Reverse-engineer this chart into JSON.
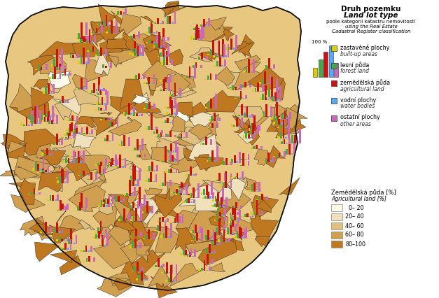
{
  "title_line1": "Druh pozemku",
  "title_line2": "Land lot type",
  "subtitle_line1": "podle kategorií katastru nemovitostí",
  "subtitle_line2": "using the Real Estate",
  "subtitle_line3": "Cadastral Register classification",
  "bar_legend_items": [
    {
      "label_cz": "zastavěné plochy",
      "label_en": "built-up areas",
      "color": "#DDCC00"
    },
    {
      "label_cz": "lesní půda",
      "label_en": "forest land",
      "color": "#44AA44"
    },
    {
      "label_cz": "zemědělská půda",
      "label_en": "agricultural land",
      "color": "#CC1111"
    },
    {
      "label_cz": "vodní plochy",
      "label_en": "water bodies",
      "color": "#55AAFF"
    },
    {
      "label_cz": "ostatní plochy",
      "label_en": "other areas",
      "color": "#CC66BB"
    }
  ],
  "choropleth_title_cz": "Zemědělská půda [%]",
  "choropleth_title_en": "Agricultural land [%]",
  "choropleth_classes": [
    {
      "label": "  0– 20",
      "color": "#FDFAE8"
    },
    {
      "label": "20– 40",
      "color": "#F0E0BC"
    },
    {
      "label": "40– 60",
      "color": "#E0C080"
    },
    {
      "label": "60– 80",
      "color": "#D0A050"
    },
    {
      "label": "80–100",
      "color": "#C07820"
    }
  ],
  "fig_width": 6.27,
  "fig_height": 4.26,
  "dpi": 100
}
